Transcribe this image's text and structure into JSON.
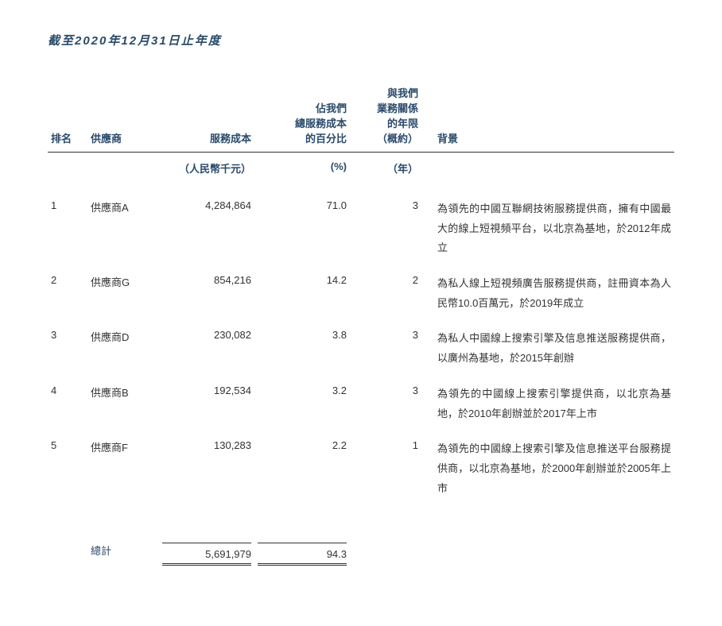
{
  "title": "截至2020年12月31日止年度",
  "columns": {
    "rank": "排名",
    "supplier": "供應商",
    "cost": "服務成本",
    "pct_line1": "佔我們",
    "pct_line2": "總服務成本",
    "pct_line3": "的百分比",
    "years_line1": "與我們",
    "years_line2": "業務關係",
    "years_line3": "的年限",
    "years_line4": "（概約）",
    "background": "背景"
  },
  "units": {
    "cost": "（人民幣千元）",
    "pct": "(%)",
    "years": "（年）"
  },
  "rows": [
    {
      "rank": "1",
      "supplier": "供應商A",
      "cost": "4,284,864",
      "pct": "71.0",
      "years": "3",
      "bg": "為領先的中國互聯網技術服務提供商，擁有中國最大的線上短視頻平台，以北京為基地，於2012年成立"
    },
    {
      "rank": "2",
      "supplier": "供應商G",
      "cost": "854,216",
      "pct": "14.2",
      "years": "2",
      "bg": "為私人線上短視頻廣告服務提供商，註冊資本為人民幣10.0百萬元，於2019年成立"
    },
    {
      "rank": "3",
      "supplier": "供應商D",
      "cost": "230,082",
      "pct": "3.8",
      "years": "3",
      "bg": "為私人中國線上搜索引擎及信息推送服務提供商，以廣州為基地，於2015年創辦"
    },
    {
      "rank": "4",
      "supplier": "供應商B",
      "cost": "192,534",
      "pct": "3.2",
      "years": "3",
      "bg": "為領先的中國線上搜索引擎提供商，以北京為基地，於2010年創辦並於2017年上市"
    },
    {
      "rank": "5",
      "supplier": "供應商F",
      "cost": "130,283",
      "pct": "2.2",
      "years": "1",
      "bg": "為領先的中國線上搜索引擎及信息推送平台服務提供商，以北京為基地，於2000年創辦並於2005年上市"
    }
  ],
  "total": {
    "label": "總計",
    "cost": "5,691,979",
    "pct": "94.3"
  },
  "colors": {
    "heading": "#2a4a6a",
    "text": "#333333",
    "border": "#333333",
    "bg": "#ffffff"
  },
  "font_sizes": {
    "title": 15,
    "body": 13
  }
}
